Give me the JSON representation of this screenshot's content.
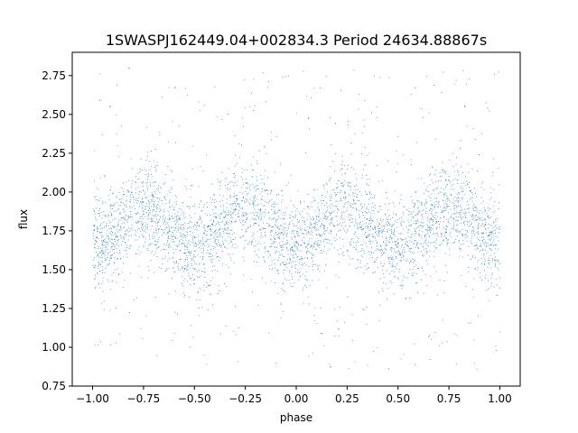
{
  "chart_data": {
    "type": "scatter",
    "title": "1SWASPJ162449.04+002834.3 Period 24634.88867s",
    "xlabel": "phase",
    "ylabel": "flux",
    "xlim": [
      -1.1,
      1.1
    ],
    "ylim": [
      0.75,
      2.9
    ],
    "x_ticks": [
      -1.0,
      -0.75,
      -0.5,
      -0.25,
      0.0,
      0.25,
      0.5,
      0.75,
      1.0
    ],
    "x_tick_labels": [
      "−1.00",
      "−0.75",
      "−0.50",
      "−0.25",
      "0.00",
      "0.25",
      "0.50",
      "0.75",
      "1.00"
    ],
    "y_ticks": [
      0.75,
      1.0,
      1.25,
      1.5,
      1.75,
      2.0,
      2.25,
      2.5,
      2.75
    ],
    "y_tick_labels": [
      "0.75",
      "1.00",
      "1.25",
      "1.50",
      "1.75",
      "2.00",
      "2.25",
      "2.50",
      "2.75"
    ],
    "grid": false,
    "series": [
      {
        "color": "#1f77b4",
        "x_range": [
          -1.0,
          1.0
        ],
        "mean_flux": 1.77,
        "amplitude": 0.12,
        "cycles_per_phase_unit": 2,
        "peak_phase": -0.75,
        "core_spread": 0.15,
        "wing_range": [
          0.85,
          2.8
        ]
      }
    ]
  }
}
